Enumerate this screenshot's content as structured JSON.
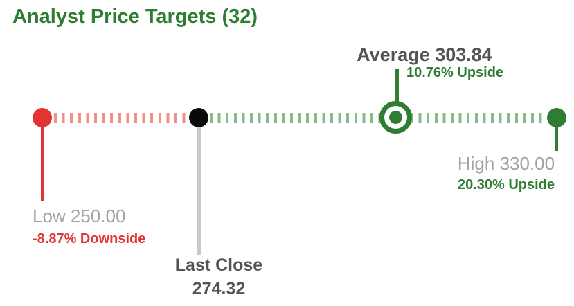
{
  "title": "Analyst Price Targets (32)",
  "colors": {
    "green": "#2e7d32",
    "green-dash": "#8aba8c",
    "red": "#e23434",
    "red-dash": "#f0908d",
    "gray-text": "#a2a2a2",
    "dark-text": "#545456",
    "gray-line": "#c9c9c9",
    "black": "#0a0a0a"
  },
  "chart_data": {
    "type": "range-indicator",
    "title": "Analyst Price Targets",
    "analyst_count": 32,
    "axis_range": [
      250.0,
      330.0
    ],
    "legend_position": "none",
    "grid": false,
    "markers": {
      "low": {
        "label": "Low",
        "value": 250.0,
        "display": "Low 250.00",
        "change": "-8.87% Downside"
      },
      "last_close": {
        "label": "Last Close",
        "value": 274.32,
        "value_display": "274.32"
      },
      "average": {
        "label": "Average",
        "value": 303.84,
        "display": "Average 303.84",
        "change": "10.76% Upside"
      },
      "high": {
        "label": "High",
        "value": 330.0,
        "display": "High 330.00",
        "change": "20.30% Upside"
      }
    }
  }
}
